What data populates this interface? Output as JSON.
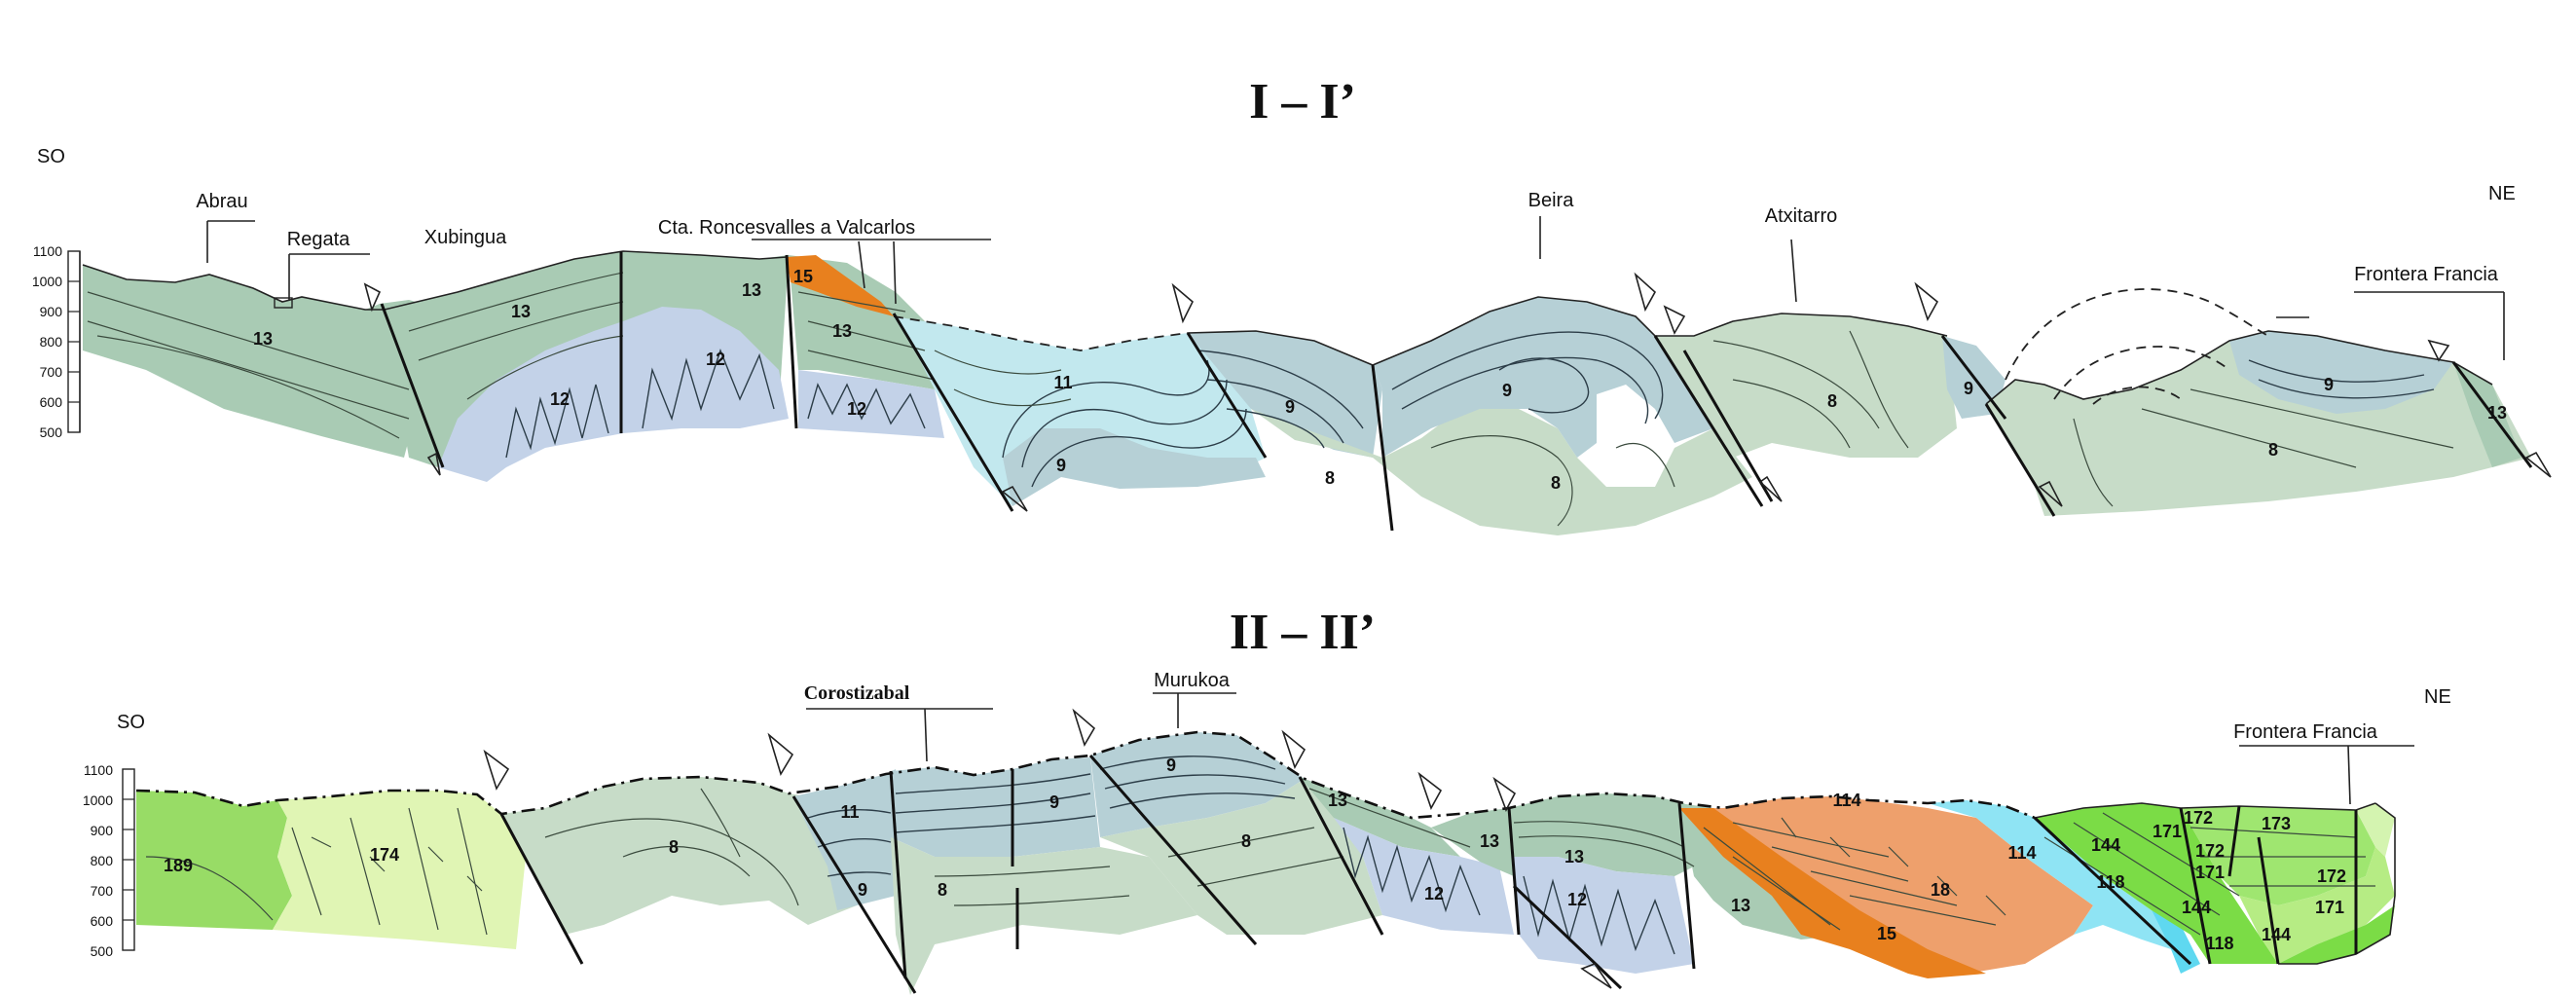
{
  "sections": [
    {
      "title": "I – I’",
      "orientation_left": "SO",
      "orientation_right": "NE",
      "scale_labels": [
        "1100",
        "1000",
        "900",
        "800",
        "700",
        "600",
        "500"
      ],
      "places": [
        "Abrau",
        "Regata",
        "Xubingua",
        "Cta. Roncesvalles a Valcarlos",
        "Beira",
        "Atxitarro",
        "Frontera Francia"
      ],
      "units": [
        "13",
        "13",
        "12",
        "12",
        "12",
        "13",
        "15",
        "13",
        "11",
        "9",
        "9",
        "8",
        "9",
        "8",
        "8",
        "9",
        "9",
        "8",
        "13"
      ]
    },
    {
      "title": "II – II’",
      "orientation_left": "SO",
      "orientation_right": "NE",
      "scale_labels": [
        "1100",
        "1000",
        "900",
        "800",
        "700",
        "600",
        "500"
      ],
      "places": [
        "Corostizabal",
        "Murukoa",
        "Frontera Francia"
      ],
      "units": [
        "189",
        "174",
        "8",
        "11",
        "9",
        "8",
        "9",
        "9",
        "8",
        "13",
        "12",
        "13",
        "13",
        "12",
        "13",
        "114",
        "18",
        "15",
        "114",
        "118",
        "144",
        "171",
        "172",
        "173",
        "172",
        "171",
        "144",
        "118",
        "144",
        "172",
        "171"
      ]
    }
  ],
  "colors": {
    "unit_8": "#c7dcc8",
    "unit_9": "#b6d0d6",
    "unit_11": "#c2e8ee",
    "unit_12": "#c3d2e8",
    "unit_13": "#a9cbb4",
    "unit_15": "#e8801e",
    "unit_18": "#eea06c",
    "unit_114": "#8fe4f4",
    "unit_118": "#5fd8f0",
    "unit_144": "#7bdc46",
    "unit_171": "#9fe670",
    "unit_172": "#b6ec84",
    "unit_173": "#d4f4b0",
    "unit_174": "#e0f5b4",
    "unit_189": "#98dc66"
  }
}
